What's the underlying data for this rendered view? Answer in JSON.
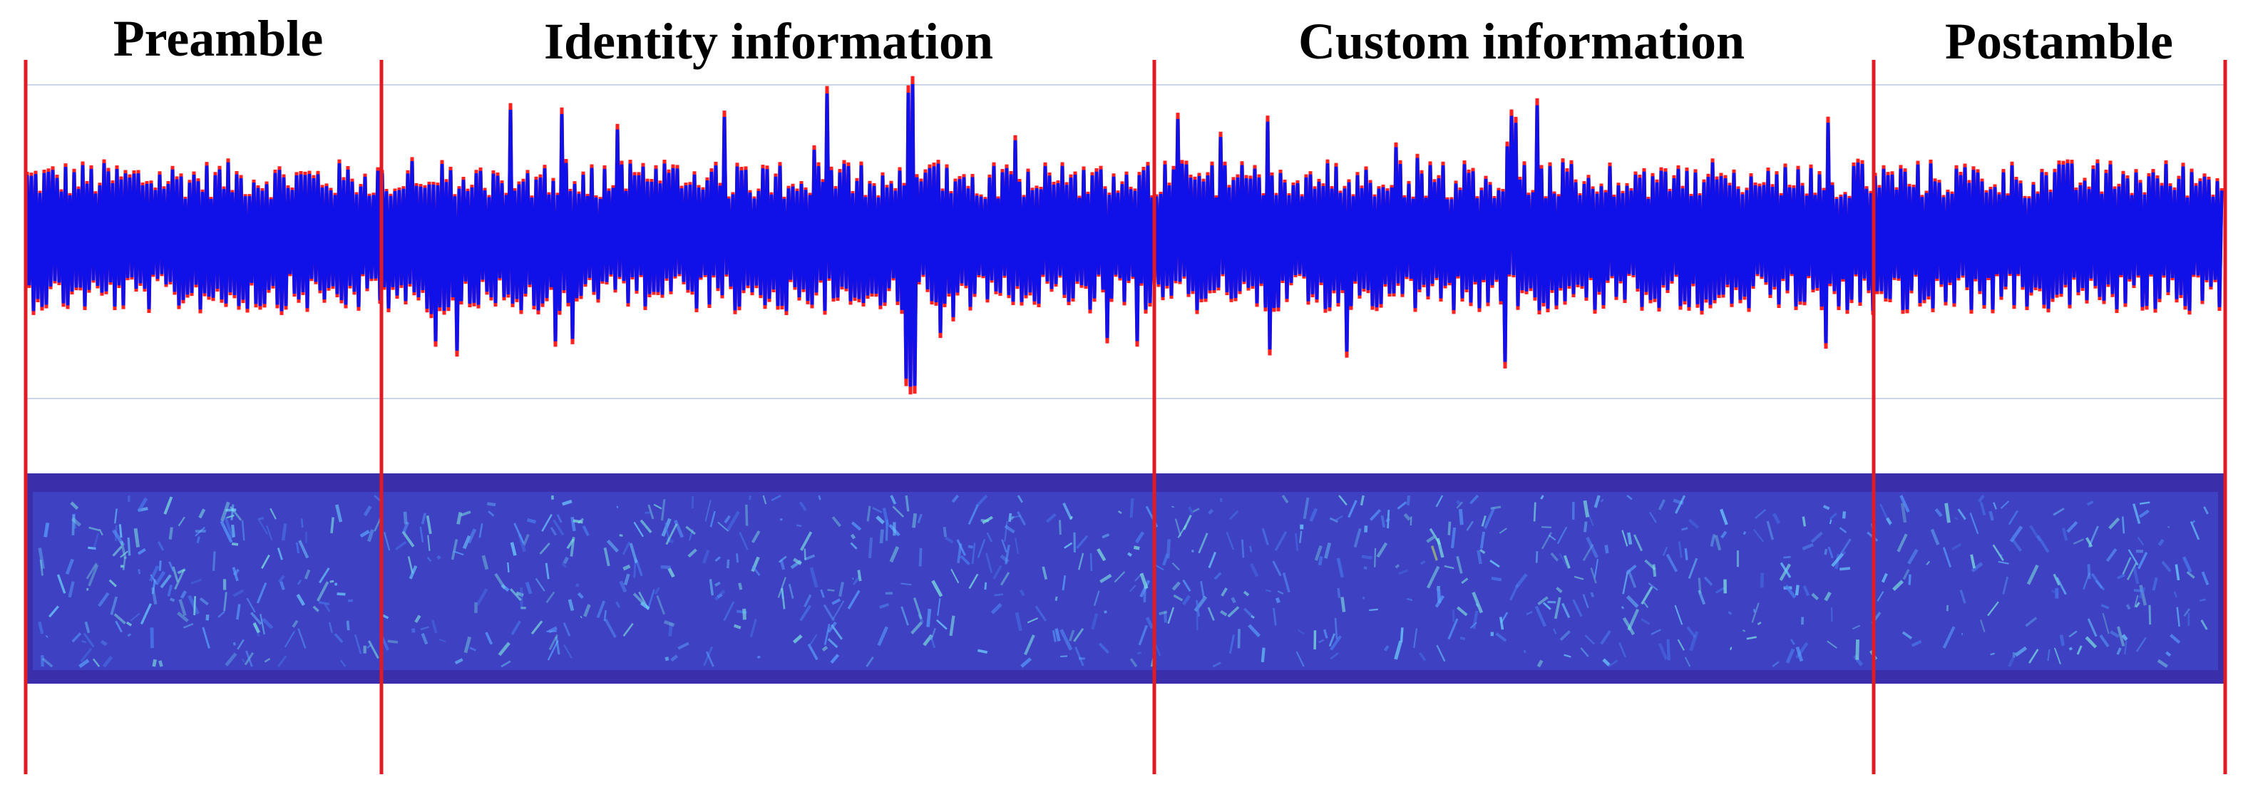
{
  "sections": [
    {
      "label": "Preamble"
    },
    {
      "label": "Identity information"
    },
    {
      "label": "Custom information"
    },
    {
      "label": "Postamble"
    }
  ]
}
